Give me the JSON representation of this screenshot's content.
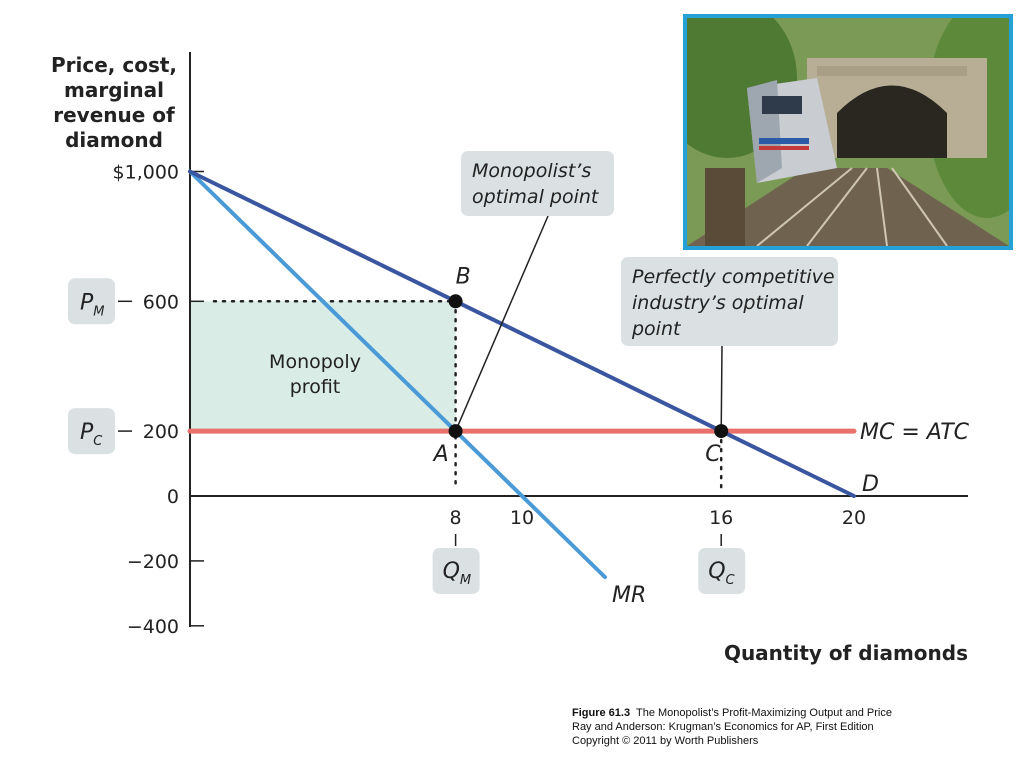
{
  "chart_data": {
    "type": "line",
    "ylabel_lines": [
      "Price, cost,",
      "marginal",
      "revenue of",
      "diamond"
    ],
    "xlabel": "Quantity of diamonds",
    "xlim": [
      0,
      23
    ],
    "ylim": [
      -400,
      1000
    ],
    "y_ticks": [
      {
        "value": 1000,
        "label": "$1,000"
      },
      {
        "value": 600,
        "label": "600"
      },
      {
        "value": 200,
        "label": "200"
      },
      {
        "value": 0,
        "label": "0"
      },
      {
        "value": -200,
        "label": "−200"
      },
      {
        "value": -400,
        "label": "−400"
      }
    ],
    "x_ticks": [
      {
        "value": 8,
        "label": "8"
      },
      {
        "value": 10,
        "label": "10"
      },
      {
        "value": 16,
        "label": "16"
      },
      {
        "value": 20,
        "label": "20"
      }
    ],
    "series": [
      {
        "name": "D",
        "points": [
          [
            0,
            1000
          ],
          [
            20,
            0
          ]
        ],
        "color": "#3a56a0"
      },
      {
        "name": "MR",
        "points": [
          [
            0,
            1000
          ],
          [
            12.5,
            -250
          ]
        ],
        "color": "#4a9ad8"
      },
      {
        "name": "MC = ATC",
        "points": [
          [
            0,
            200
          ],
          [
            20,
            200
          ]
        ],
        "color": "#e8716c"
      }
    ],
    "points": [
      {
        "label": "A",
        "x": 8,
        "y": 200
      },
      {
        "label": "B",
        "x": 8,
        "y": 600
      },
      {
        "label": "C",
        "x": 16,
        "y": 200
      }
    ],
    "price_markers": [
      {
        "letter": "P",
        "sub": "M",
        "value": 600
      },
      {
        "letter": "P",
        "sub": "C",
        "value": 200
      }
    ],
    "quantity_markers": [
      {
        "letter": "Q",
        "sub": "M",
        "value": 8
      },
      {
        "letter": "Q",
        "sub": "C",
        "value": 16
      }
    ],
    "profit_area": {
      "label_lines": [
        "Monopoly",
        "profit"
      ],
      "x": [
        0,
        8
      ],
      "y": [
        200,
        600
      ],
      "color": "#d9ede6"
    },
    "annotations": [
      {
        "id": "monopolist",
        "lines": [
          "Monopolist’s",
          "optimal point"
        ],
        "target": "A"
      },
      {
        "id": "competitive",
        "lines": [
          "Perfectly competitive",
          "industry’s optimal",
          "point"
        ],
        "target": "C"
      }
    ],
    "colors": {
      "axis": "#222222",
      "label_box": "#dbe1e3",
      "photo_border": "#24a2d8"
    }
  },
  "photo": {
    "icon": "train-tunnel-photo"
  },
  "caption": {
    "figure_label": "Figure 61.3",
    "title": "The Monopolist’s Profit-Maximizing Output and Price",
    "line2": "Ray and Anderson: Krugman’s Economics for AP, First Edition",
    "line3": "Copyright © 2011 by Worth Publishers"
  }
}
